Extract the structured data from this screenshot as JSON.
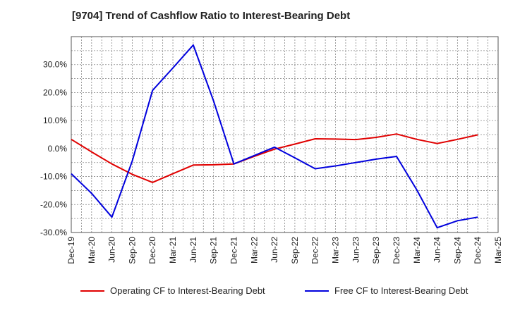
{
  "chart_data": {
    "type": "line",
    "title": "[9704]  Trend of Cashflow Ratio to Interest-Bearing Debt",
    "x": [
      "Dec-19",
      "Mar-20",
      "Jun-20",
      "Sep-20",
      "Dec-20",
      "Mar-21",
      "Jun-21",
      "Sep-21",
      "Dec-21",
      "Mar-22",
      "Jun-22",
      "Sep-22",
      "Dec-22",
      "Mar-23",
      "Jun-23",
      "Sep-23",
      "Dec-23",
      "Mar-24",
      "Jun-24",
      "Sep-24",
      "Dec-24",
      "Mar-25"
    ],
    "ylim": [
      -30,
      40
    ],
    "yticks": [
      -30,
      -20,
      -10,
      0,
      10,
      20,
      30
    ],
    "ytick_labels": [
      "-30.0%",
      "-20.0%",
      "-10.0%",
      "0.0%",
      "10.0%",
      "20.0%",
      "30.0%"
    ],
    "grid": true,
    "legend_position": "bottom",
    "series": [
      {
        "name": "Operating CF to Interest-Bearing Debt",
        "color": "#e00000",
        "values": [
          3.3,
          -1.2,
          -5.5,
          -9.2,
          -12.1,
          -9.0,
          -5.9,
          -5.8,
          -5.5,
          -2.8,
          -0.2,
          1.6,
          3.5,
          3.4,
          3.2,
          4.0,
          5.2,
          3.3,
          1.8,
          3.3,
          4.9,
          null
        ]
      },
      {
        "name": "Free CF to Interest-Bearing Debt",
        "color": "#0000dd",
        "values": [
          -9.0,
          -16.0,
          -24.5,
          -4.5,
          20.8,
          28.8,
          37.0,
          17.0,
          -5.5,
          -2.5,
          0.5,
          -3.3,
          -7.2,
          -6.2,
          -5.0,
          -3.8,
          -2.8,
          -14.8,
          -28.3,
          -25.8,
          -24.5,
          null
        ]
      }
    ]
  }
}
